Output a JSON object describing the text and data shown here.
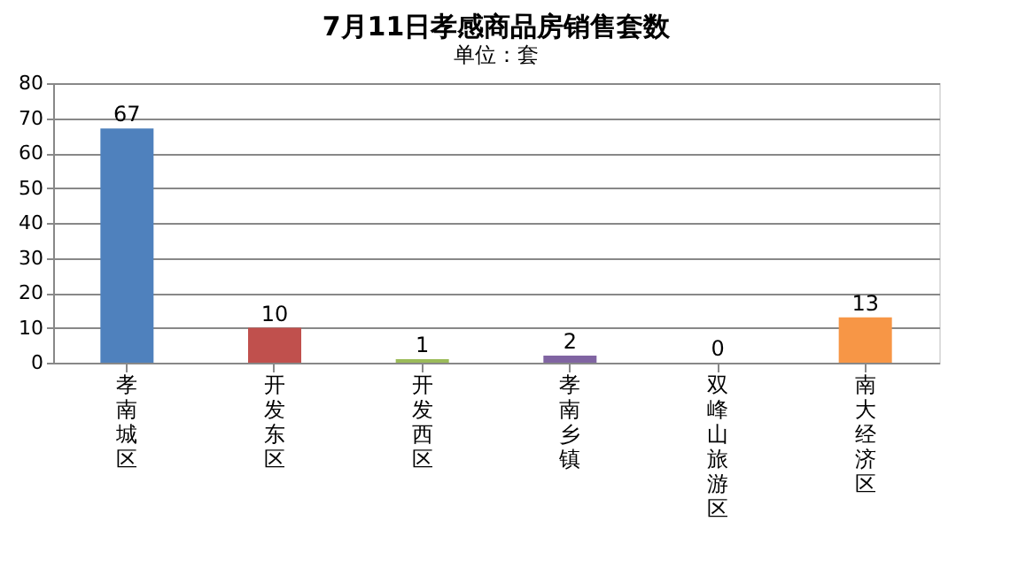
{
  "chart_data": {
    "type": "bar",
    "title": "7月11日孝感商品房销售套数",
    "annotations": [
      "单位：套"
    ],
    "categories": [
      "孝南城区",
      "开发东区",
      "开发西区",
      "孝南乡镇",
      "双峰山旅游区",
      "南大经济区"
    ],
    "values": [
      67,
      10,
      1,
      2,
      0,
      13
    ],
    "colors": [
      "#4f81bd",
      "#c0504d",
      "#9bbb59",
      "#8064a2",
      "#4bacc6",
      "#f79646"
    ],
    "ylim": [
      0,
      80
    ],
    "yticks": [
      0,
      10,
      20,
      30,
      40,
      50,
      60,
      70,
      80
    ],
    "grid": "y",
    "data_labels": true
  }
}
